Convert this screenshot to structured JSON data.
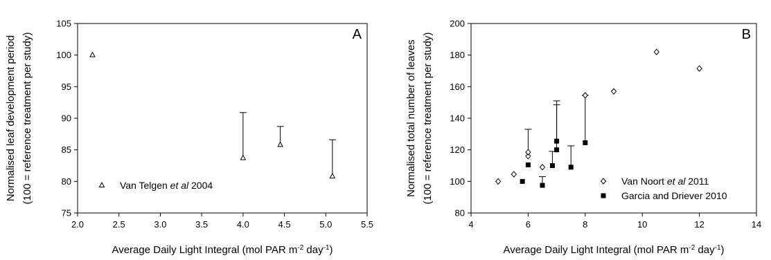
{
  "chart_data": [
    {
      "type": "scatter",
      "panel_label": "A",
      "ylabel_line1": "Normalised leaf development period",
      "ylabel_line2": "(100 = reference treatment per study)",
      "xlabel": "Average Daily Light Integral (mol PAR m",
      "xlabel_sup1": "-2",
      "xlabel_mid": " day",
      "xlabel_sup2": "-1",
      "xlabel_end": ")",
      "xlim": [
        2.0,
        5.5
      ],
      "ylim": [
        75,
        105
      ],
      "x_ticks": [
        2.0,
        2.5,
        3.0,
        3.5,
        4.0,
        4.5,
        5.0,
        5.5
      ],
      "x_tick_labels": [
        "2.0",
        "2.5",
        "3.0",
        "3.5",
        "4.0",
        "4.5",
        "5.0",
        "5.5"
      ],
      "y_ticks": [
        75,
        80,
        85,
        90,
        95,
        100,
        105
      ],
      "y_tick_labels": [
        "75",
        "80",
        "85",
        "90",
        "95",
        "100",
        "105"
      ],
      "legend_position": "lower-left",
      "series": [
        {
          "name_pre": "Van Telgen ",
          "name_em": "et al",
          "name_post": " 2004",
          "marker": "open-triangle",
          "points": [
            {
              "x": 2.18,
              "y": 100.0,
              "err": null
            },
            {
              "x": 4.0,
              "y": 83.7,
              "err": 7.2
            },
            {
              "x": 4.45,
              "y": 85.8,
              "err": 2.9
            },
            {
              "x": 5.08,
              "y": 80.8,
              "err": 5.8
            }
          ]
        }
      ]
    },
    {
      "type": "scatter",
      "panel_label": "B",
      "ylabel_line1": "Normalised total number of leaves",
      "ylabel_line2": "(100 = reference treatment per study)",
      "xlabel": "Average Daily Light Integral (mol PAR m",
      "xlabel_sup1": "-2",
      "xlabel_mid": " day",
      "xlabel_sup2": "-1",
      "xlabel_end": ")",
      "xlim": [
        4,
        14
      ],
      "ylim": [
        80,
        200
      ],
      "x_ticks": [
        4,
        6,
        8,
        10,
        12,
        14
      ],
      "x_tick_labels": [
        "4",
        "6",
        "8",
        "10",
        "12",
        "14"
      ],
      "y_ticks": [
        80,
        100,
        120,
        140,
        160,
        180,
        200
      ],
      "y_tick_labels": [
        "80",
        "100",
        "120",
        "140",
        "160",
        "180",
        "200"
      ],
      "legend_position": "lower-right",
      "series": [
        {
          "name_pre": "Van Noort ",
          "name_em": "et al",
          "name_post": " 2011",
          "marker": "open-diamond",
          "points": [
            {
              "x": 4.95,
              "y": 100.0,
              "err": null
            },
            {
              "x": 5.5,
              "y": 104.5,
              "err": null
            },
            {
              "x": 6.0,
              "y": 116.0,
              "err": 17.0
            },
            {
              "x": 6.0,
              "y": 118.5,
              "err": null
            },
            {
              "x": 6.5,
              "y": 109.0,
              "err": null
            },
            {
              "x": 8.0,
              "y": 154.5,
              "err": null
            },
            {
              "x": 9.0,
              "y": 157.0,
              "err": null
            },
            {
              "x": 10.5,
              "y": 182.0,
              "err": null
            },
            {
              "x": 12.0,
              "y": 171.5,
              "err": null
            }
          ]
        },
        {
          "name_pre": "Garcia and Driever 2010",
          "name_em": "",
          "name_post": "",
          "marker": "filled-square",
          "points": [
            {
              "x": 5.8,
              "y": 100.0,
              "err": null
            },
            {
              "x": 6.0,
              "y": 110.5,
              "err": null
            },
            {
              "x": 6.5,
              "y": 97.5,
              "err": 5.5
            },
            {
              "x": 6.85,
              "y": 110.0,
              "err": 9.0
            },
            {
              "x": 7.0,
              "y": 125.5,
              "err": 25.5
            },
            {
              "x": 7.0,
              "y": 120.0,
              "err": 28.5
            },
            {
              "x": 7.5,
              "y": 109.0,
              "err": 13.5
            },
            {
              "x": 8.0,
              "y": 124.5,
              "err": 30.0
            }
          ]
        }
      ]
    }
  ]
}
